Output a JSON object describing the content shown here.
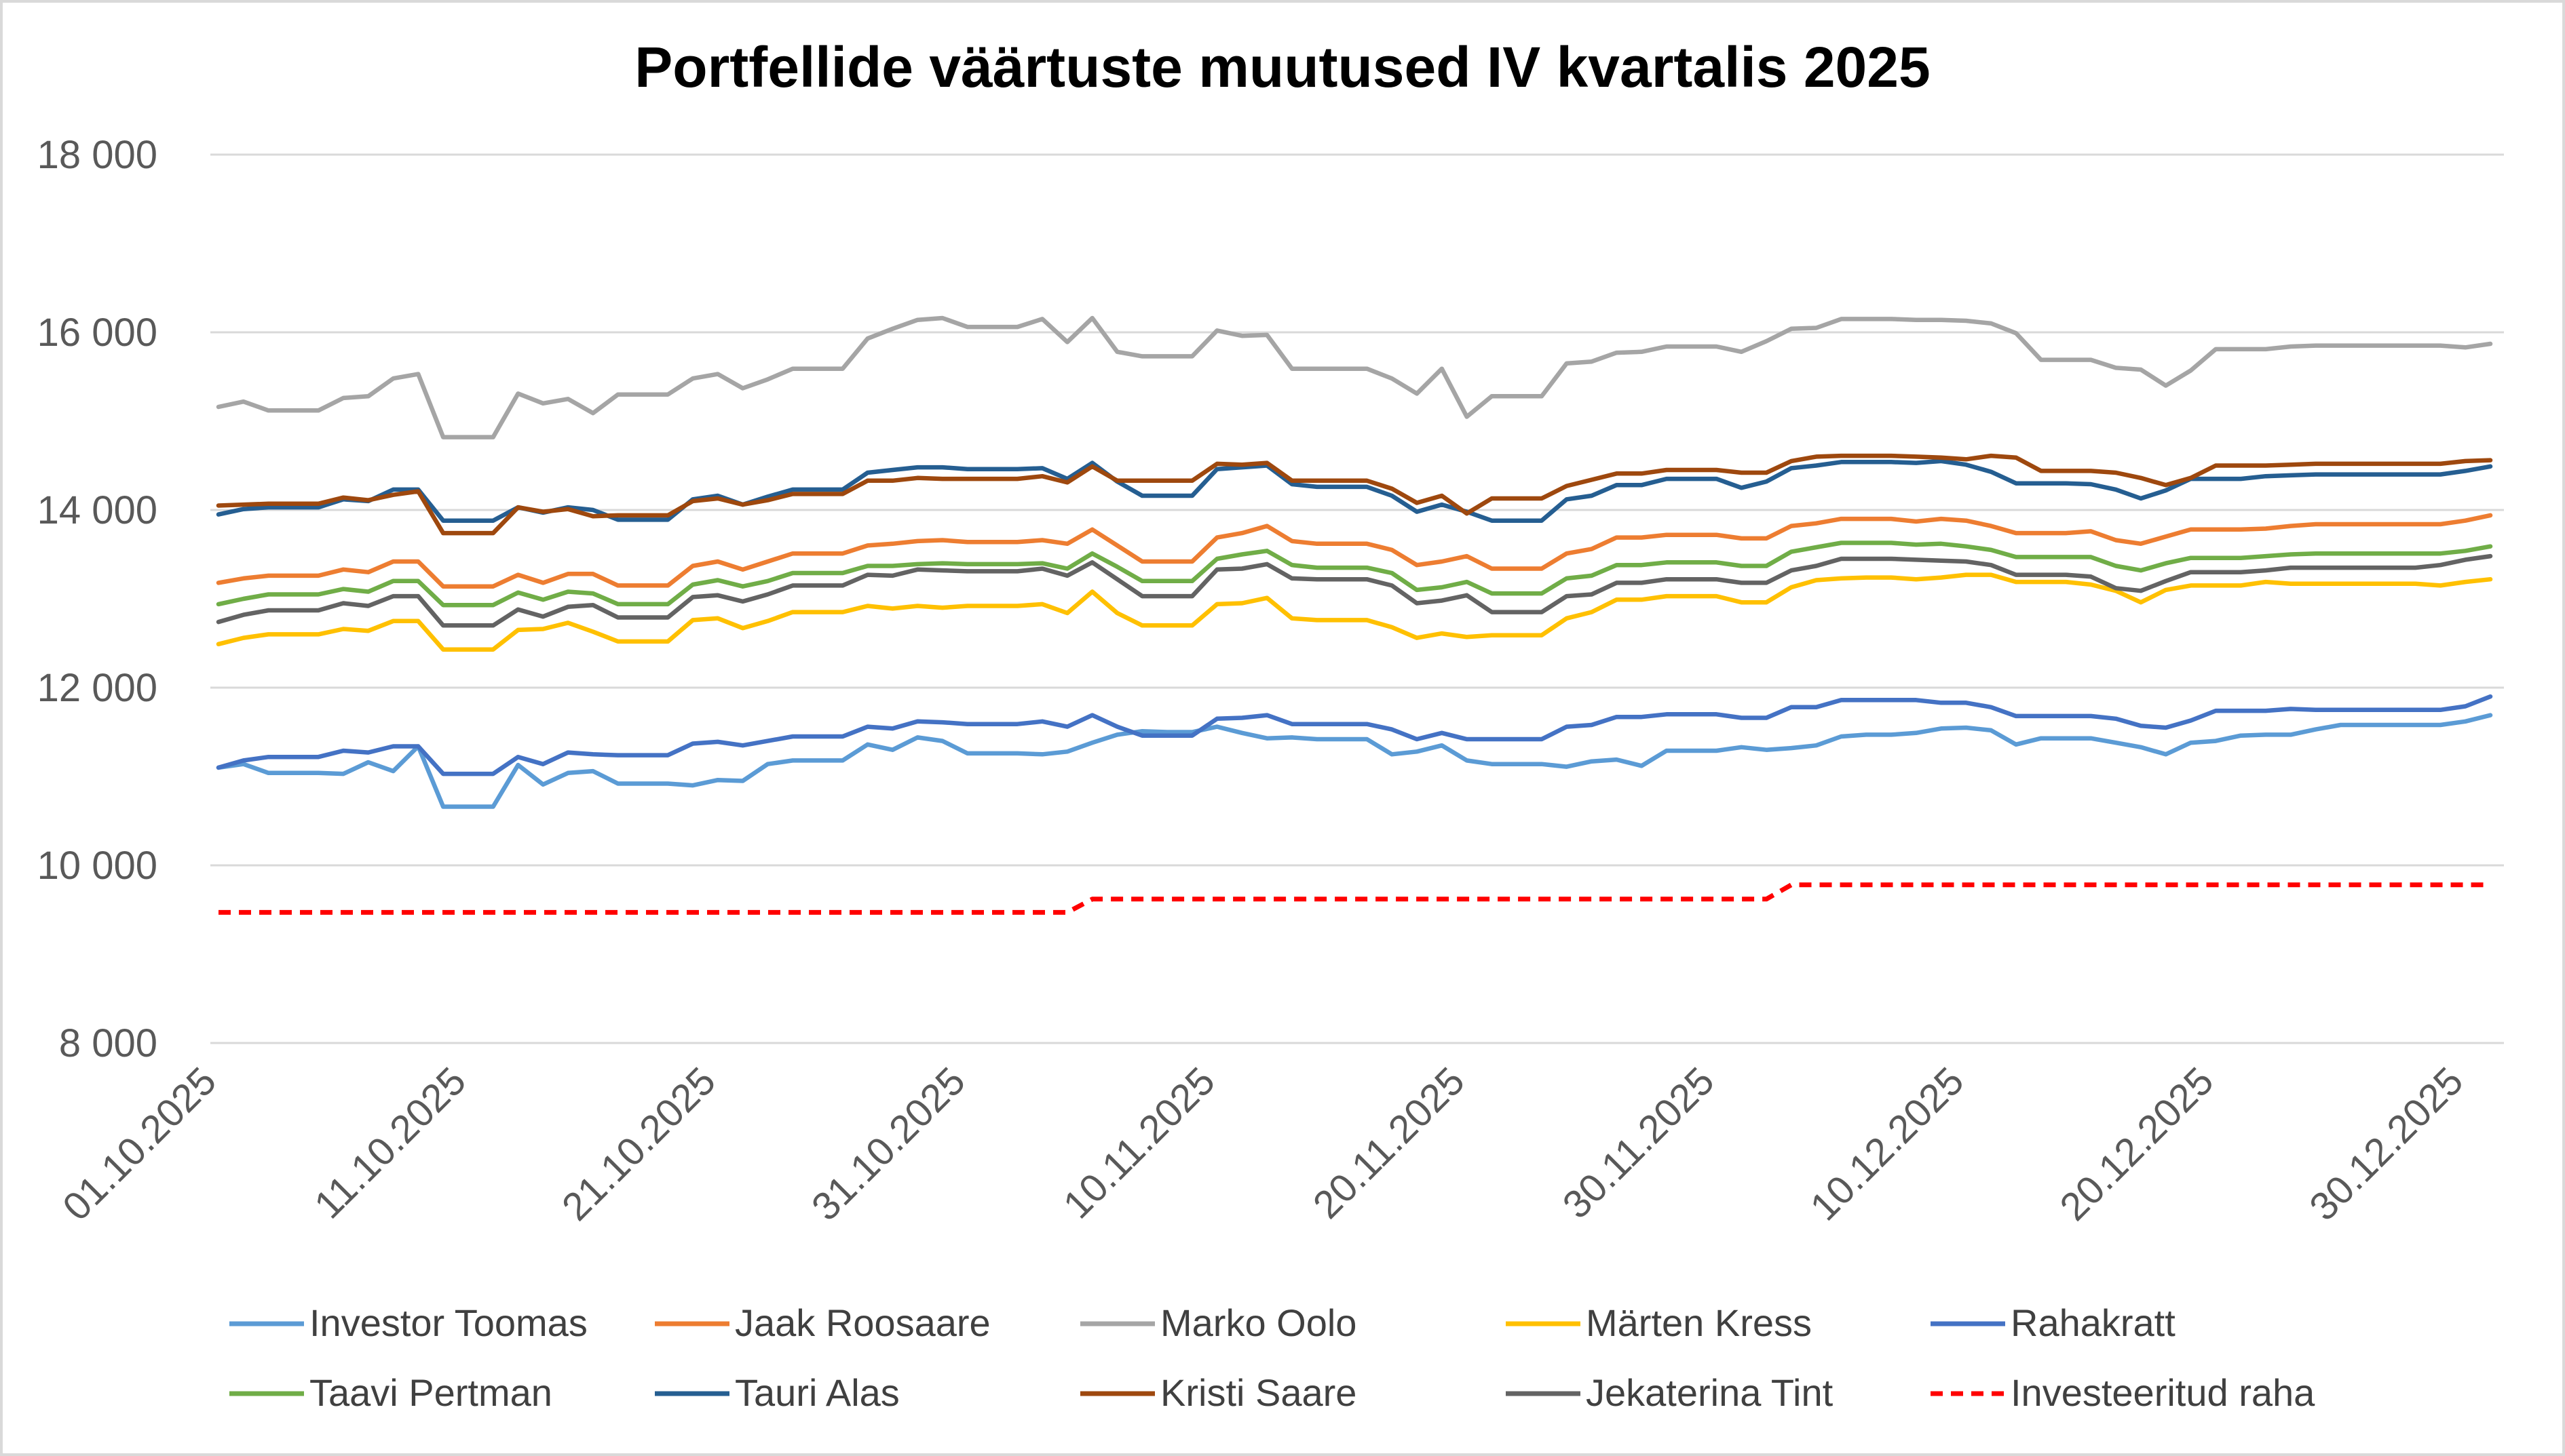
{
  "chart_data": {
    "type": "line",
    "title": "Portfellide väärtuste muutused IV kvartalis 2025",
    "xlabel": "",
    "ylabel": "",
    "ylim": [
      8000,
      18000
    ],
    "yticks": [
      8000,
      10000,
      12000,
      14000,
      16000,
      18000
    ],
    "ytick_labels": [
      "8 000",
      "10 000",
      "12 000",
      "14 000",
      "16 000",
      "18 000"
    ],
    "grid": true,
    "legend_position": "bottom",
    "x_count": 92,
    "xtick_index": [
      0,
      10,
      20,
      30,
      40,
      50,
      60,
      70,
      80,
      90
    ],
    "xtick_labels": [
      "01.10.2025",
      "11.10.2025",
      "21.10.2025",
      "31.10.2025",
      "10.11.2025",
      "20.11.2025",
      "30.11.2025",
      "10.12.2025",
      "20.12.2025",
      "30.12.2025"
    ],
    "series": [
      {
        "name": "Investor Toomas",
        "color": "#5b9bd5",
        "dash": false,
        "values": [
          11100,
          11140,
          11040,
          11040,
          11040,
          11030,
          11160,
          11060,
          11340,
          10660,
          10660,
          10660,
          11130,
          10910,
          11040,
          11060,
          10920,
          10920,
          10920,
          10900,
          10960,
          10950,
          11140,
          11180,
          11180,
          11180,
          11360,
          11300,
          11440,
          11400,
          11260,
          11260,
          11260,
          11250,
          11280,
          11380,
          11470,
          11510,
          11500,
          11500,
          11560,
          11490,
          11430,
          11440,
          11420,
          11420,
          11420,
          11250,
          11280,
          11350,
          11180,
          11140,
          11140,
          11140,
          11110,
          11170,
          11190,
          11120,
          11290,
          11290,
          11290,
          11330,
          11300,
          11320,
          11350,
          11450,
          11470,
          11470,
          11490,
          11540,
          11550,
          11520,
          11360,
          11430,
          11430,
          11430,
          11380,
          11330,
          11250,
          11380,
          11400,
          11460,
          11470,
          11470,
          11530,
          11580,
          11580,
          11580,
          11580,
          11580,
          11620,
          11690
        ]
      },
      {
        "name": "Jaak Roosaare",
        "color": "#ed7d31",
        "dash": false,
        "values": [
          13180,
          13230,
          13260,
          13260,
          13260,
          13330,
          13300,
          13420,
          13420,
          13140,
          13140,
          13140,
          13270,
          13180,
          13280,
          13280,
          13150,
          13150,
          13150,
          13370,
          13420,
          13330,
          13420,
          13510,
          13510,
          13510,
          13600,
          13620,
          13650,
          13660,
          13640,
          13640,
          13640,
          13660,
          13620,
          13780,
          13600,
          13420,
          13420,
          13420,
          13690,
          13740,
          13820,
          13650,
          13620,
          13620,
          13620,
          13550,
          13380,
          13420,
          13480,
          13340,
          13340,
          13340,
          13510,
          13560,
          13690,
          13690,
          13720,
          13720,
          13720,
          13680,
          13680,
          13820,
          13850,
          13900,
          13900,
          13900,
          13870,
          13900,
          13880,
          13820,
          13740,
          13740,
          13740,
          13760,
          13660,
          13620,
          13700,
          13780,
          13780,
          13780,
          13790,
          13820,
          13840,
          13840,
          13840,
          13840,
          13840,
          13840,
          13880,
          13940
        ]
      },
      {
        "name": "Marko Oolo",
        "color": "#a5a5a5",
        "dash": false,
        "values": [
          15160,
          15220,
          15120,
          15120,
          15120,
          15260,
          15280,
          15480,
          15530,
          14820,
          14820,
          14820,
          15310,
          15200,
          15250,
          15090,
          15300,
          15300,
          15300,
          15480,
          15530,
          15370,
          15470,
          15590,
          15590,
          15590,
          15930,
          16040,
          16140,
          16160,
          16060,
          16060,
          16060,
          16150,
          15890,
          16160,
          15780,
          15730,
          15730,
          15730,
          16020,
          15960,
          15970,
          15590,
          15590,
          15590,
          15590,
          15480,
          15310,
          15590,
          15050,
          15280,
          15280,
          15280,
          15650,
          15670,
          15770,
          15780,
          15840,
          15840,
          15840,
          15780,
          15900,
          16040,
          16050,
          16150,
          16150,
          16150,
          16140,
          16140,
          16130,
          16100,
          15990,
          15690,
          15690,
          15690,
          15600,
          15580,
          15400,
          15570,
          15810,
          15810,
          15810,
          15840,
          15850,
          15850,
          15850,
          15850,
          15850,
          15850,
          15830,
          15870
        ]
      },
      {
        "name": "Märten Kress",
        "color": "#ffc000",
        "dash": false,
        "values": [
          12490,
          12560,
          12600,
          12600,
          12600,
          12660,
          12640,
          12750,
          12750,
          12430,
          12430,
          12430,
          12650,
          12660,
          12730,
          12630,
          12520,
          12520,
          12520,
          12760,
          12780,
          12670,
          12750,
          12850,
          12850,
          12850,
          12920,
          12890,
          12920,
          12900,
          12920,
          12920,
          12920,
          12940,
          12840,
          13080,
          12840,
          12700,
          12700,
          12700,
          12940,
          12950,
          13010,
          12780,
          12760,
          12760,
          12760,
          12680,
          12560,
          12610,
          12570,
          12590,
          12590,
          12590,
          12780,
          12850,
          12990,
          12990,
          13030,
          13030,
          13030,
          12960,
          12960,
          13130,
          13210,
          13230,
          13240,
          13240,
          13220,
          13240,
          13270,
          13270,
          13190,
          13190,
          13190,
          13160,
          13090,
          12960,
          13100,
          13150,
          13150,
          13150,
          13190,
          13170,
          13170,
          13170,
          13170,
          13170,
          13170,
          13150,
          13190,
          13220
        ]
      },
      {
        "name": "Rahakratt",
        "color": "#4472c4",
        "dash": false,
        "values": [
          11100,
          11180,
          11220,
          11220,
          11220,
          11290,
          11270,
          11340,
          11340,
          11030,
          11030,
          11030,
          11220,
          11140,
          11270,
          11250,
          11240,
          11240,
          11240,
          11370,
          11390,
          11350,
          11400,
          11450,
          11450,
          11450,
          11560,
          11540,
          11620,
          11610,
          11590,
          11590,
          11590,
          11620,
          11560,
          11690,
          11560,
          11460,
          11460,
          11460,
          11650,
          11660,
          11690,
          11590,
          11590,
          11590,
          11590,
          11530,
          11420,
          11490,
          11420,
          11420,
          11420,
          11420,
          11560,
          11580,
          11670,
          11670,
          11700,
          11700,
          11700,
          11660,
          11660,
          11780,
          11780,
          11860,
          11860,
          11860,
          11860,
          11830,
          11830,
          11780,
          11680,
          11680,
          11680,
          11680,
          11650,
          11570,
          11550,
          11630,
          11740,
          11740,
          11740,
          11760,
          11750,
          11750,
          11750,
          11750,
          11750,
          11750,
          11790,
          11900
        ]
      },
      {
        "name": "Taavi Pertman",
        "color": "#70ad47",
        "dash": false,
        "values": [
          12940,
          13000,
          13050,
          13050,
          13050,
          13110,
          13080,
          13200,
          13200,
          12930,
          12930,
          12930,
          13070,
          12990,
          13080,
          13060,
          12940,
          12940,
          12940,
          13160,
          13210,
          13140,
          13200,
          13290,
          13290,
          13290,
          13370,
          13370,
          13390,
          13400,
          13390,
          13390,
          13390,
          13400,
          13340,
          13510,
          13360,
          13200,
          13200,
          13200,
          13450,
          13500,
          13540,
          13380,
          13350,
          13350,
          13350,
          13290,
          13100,
          13130,
          13190,
          13060,
          13060,
          13060,
          13230,
          13260,
          13380,
          13380,
          13410,
          13410,
          13410,
          13370,
          13370,
          13530,
          13580,
          13630,
          13630,
          13630,
          13610,
          13620,
          13590,
          13550,
          13470,
          13470,
          13470,
          13470,
          13370,
          13320,
          13400,
          13460,
          13460,
          13460,
          13480,
          13500,
          13510,
          13510,
          13510,
          13510,
          13510,
          13510,
          13540,
          13590
        ]
      },
      {
        "name": "Tauri Alas",
        "color": "#255e91",
        "dash": false,
        "values": [
          13950,
          14010,
          14030,
          14030,
          14030,
          14120,
          14100,
          14230,
          14230,
          13880,
          13880,
          13880,
          14030,
          13970,
          14030,
          14000,
          13890,
          13890,
          13890,
          14120,
          14160,
          14060,
          14150,
          14230,
          14230,
          14230,
          14420,
          14450,
          14480,
          14480,
          14460,
          14460,
          14460,
          14470,
          14350,
          14530,
          14320,
          14160,
          14160,
          14160,
          14460,
          14480,
          14500,
          14290,
          14260,
          14260,
          14260,
          14160,
          13980,
          14060,
          13980,
          13880,
          13880,
          13880,
          14120,
          14160,
          14280,
          14280,
          14350,
          14350,
          14350,
          14250,
          14320,
          14470,
          14500,
          14540,
          14540,
          14540,
          14530,
          14550,
          14510,
          14430,
          14300,
          14300,
          14300,
          14290,
          14230,
          14130,
          14220,
          14350,
          14350,
          14350,
          14380,
          14390,
          14400,
          14400,
          14400,
          14400,
          14400,
          14400,
          14440,
          14490
        ]
      },
      {
        "name": "Kristi Saare",
        "color": "#9e480e",
        "dash": false,
        "values": [
          14050,
          14060,
          14070,
          14070,
          14070,
          14140,
          14110,
          14170,
          14210,
          13740,
          13740,
          13740,
          14030,
          13980,
          14010,
          13930,
          13940,
          13940,
          13940,
          14100,
          14130,
          14060,
          14110,
          14180,
          14180,
          14180,
          14330,
          14330,
          14360,
          14350,
          14350,
          14350,
          14350,
          14380,
          14310,
          14490,
          14330,
          14330,
          14330,
          14330,
          14520,
          14510,
          14530,
          14330,
          14330,
          14330,
          14330,
          14240,
          14080,
          14160,
          13960,
          14130,
          14130,
          14130,
          14270,
          14340,
          14410,
          14410,
          14450,
          14450,
          14450,
          14420,
          14420,
          14550,
          14600,
          14610,
          14610,
          14610,
          14600,
          14590,
          14570,
          14610,
          14590,
          14440,
          14440,
          14440,
          14420,
          14360,
          14280,
          14360,
          14500,
          14500,
          14500,
          14510,
          14520,
          14520,
          14520,
          14520,
          14520,
          14520,
          14550,
          14560
        ]
      },
      {
        "name": "Jekaterina Tint",
        "color": "#636363",
        "dash": false,
        "values": [
          12740,
          12820,
          12870,
          12870,
          12870,
          12950,
          12920,
          13030,
          13030,
          12700,
          12700,
          12700,
          12880,
          12800,
          12910,
          12930,
          12790,
          12790,
          12790,
          13020,
          13040,
          12970,
          13050,
          13150,
          13150,
          13150,
          13270,
          13260,
          13330,
          13320,
          13310,
          13310,
          13310,
          13340,
          13260,
          13410,
          13220,
          13030,
          13030,
          13030,
          13330,
          13340,
          13390,
          13230,
          13220,
          13220,
          13220,
          13150,
          12950,
          12980,
          13040,
          12850,
          12850,
          12850,
          13030,
          13050,
          13180,
          13180,
          13220,
          13220,
          13220,
          13180,
          13180,
          13320,
          13370,
          13450,
          13450,
          13450,
          13440,
          13430,
          13420,
          13380,
          13270,
          13270,
          13270,
          13250,
          13120,
          13090,
          13200,
          13300,
          13300,
          13300,
          13320,
          13350,
          13350,
          13350,
          13350,
          13350,
          13350,
          13380,
          13440,
          13480
        ]
      },
      {
        "name": "Investeeritud raha",
        "color": "#ff0000",
        "dash": true,
        "values": [
          9470,
          9470,
          9470,
          9470,
          9470,
          9470,
          9470,
          9470,
          9470,
          9470,
          9470,
          9470,
          9470,
          9470,
          9470,
          9470,
          9470,
          9470,
          9470,
          9470,
          9470,
          9470,
          9470,
          9470,
          9470,
          9470,
          9470,
          9470,
          9470,
          9470,
          9470,
          9470,
          9470,
          9470,
          9470,
          9620,
          9620,
          9620,
          9620,
          9620,
          9620,
          9620,
          9620,
          9620,
          9620,
          9620,
          9620,
          9620,
          9620,
          9620,
          9620,
          9620,
          9620,
          9620,
          9620,
          9620,
          9620,
          9620,
          9620,
          9620,
          9620,
          9620,
          9620,
          9780,
          9780,
          9780,
          9780,
          9780,
          9780,
          9780,
          9780,
          9780,
          9780,
          9780,
          9780,
          9780,
          9780,
          9780,
          9780,
          9780,
          9780,
          9780,
          9780,
          9780,
          9780,
          9780,
          9780,
          9780,
          9780,
          9780,
          9780,
          9780
        ]
      }
    ]
  }
}
